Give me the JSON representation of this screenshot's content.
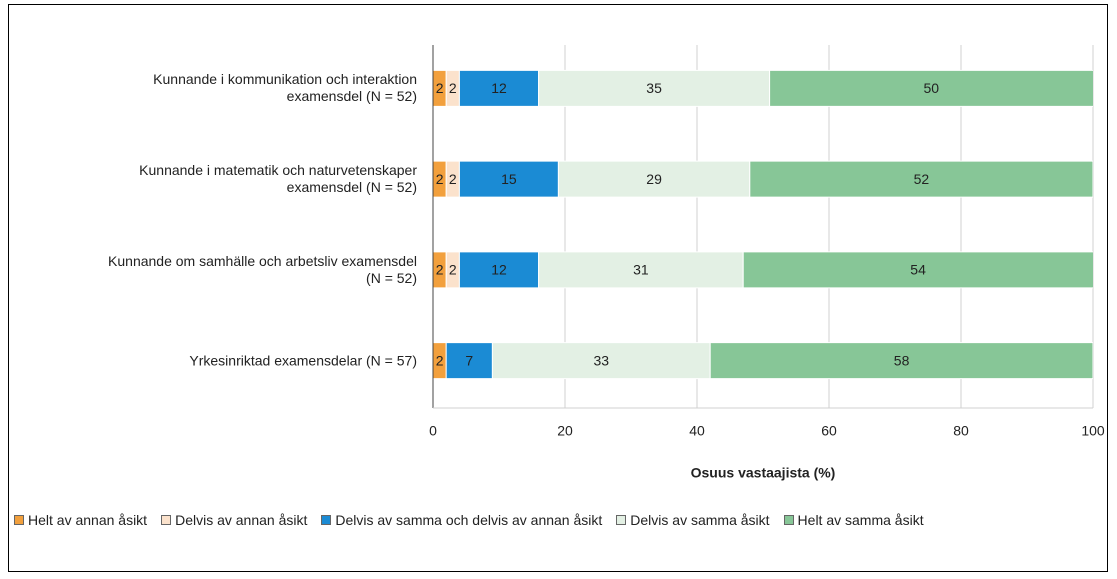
{
  "chart_data": {
    "type": "stacked-bar-horizontal",
    "categories": [
      "Kunnande i kommunikation och interaktion examensdel (N = 52)",
      "Kunnande i matematik och naturvetenskaper examensdel (N = 52)",
      "Kunnande om samhälle och arbetsliv examensdel (N = 52)",
      "Yrkesinriktad examensdelar (N = 57)"
    ],
    "series": [
      {
        "name": "Helt av annan åsikt",
        "color": "#f2a03d",
        "values": [
          2,
          2,
          2,
          2
        ]
      },
      {
        "name": "Delvis av annan åsikt",
        "color": "#fbe2cc",
        "values": [
          2,
          2,
          2,
          0
        ]
      },
      {
        "name": "Delvis av samma och delvis av annan åsikt",
        "color": "#1b8bd4",
        "values": [
          12,
          15,
          12,
          7
        ]
      },
      {
        "name": "Delvis av samma åsikt",
        "color": "#e3f0e4",
        "values": [
          35,
          29,
          31,
          33
        ]
      },
      {
        "name": "Helt av samma åsikt",
        "color": "#87c697",
        "values": [
          50,
          52,
          54,
          58
        ]
      }
    ],
    "xlabel": "Osuus vastaajista (%)",
    "xlim": [
      0,
      100
    ],
    "xticks": [
      0,
      20,
      40,
      60,
      80,
      100
    ],
    "grid": true,
    "legend": "bottom"
  }
}
